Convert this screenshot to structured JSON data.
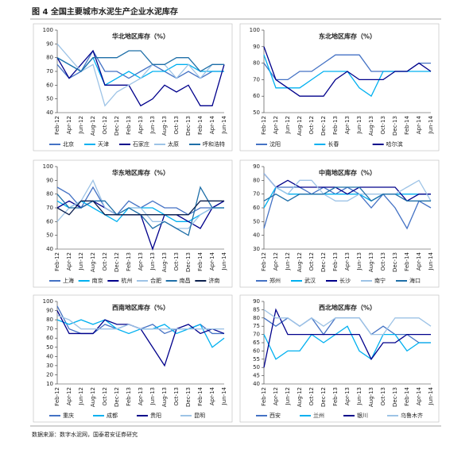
{
  "page_title": "图 4 全国主要城市水泥生产企业水泥库存",
  "source": "数据来源：数字水泥网，国泰君安证券研究",
  "chart_data": [
    {
      "type": "line",
      "title": "华北地区库存（%）",
      "categories": [
        "Feb-12",
        "Apr-12",
        "Jun-12",
        "Aug-12",
        "Oct-12",
        "Dec-12",
        "Feb-13",
        "Apr-13",
        "Jun-13",
        "Aug-13",
        "Oct-13",
        "Dec-13",
        "Feb-14",
        "Apr-14",
        "Jun-14"
      ],
      "ylim": [
        40,
        100
      ],
      "yticks": [
        40,
        50,
        60,
        70,
        80,
        90,
        100
      ],
      "series": [
        {
          "name": "北京",
          "color": "#4472c4",
          "values": [
            75,
            65,
            70,
            85,
            70,
            70,
            65,
            70,
            75,
            70,
            65,
            70,
            65,
            70,
            70
          ]
        },
        {
          "name": "天津",
          "color": "#00b0f0",
          "values": [
            80,
            75,
            70,
            80,
            60,
            65,
            70,
            65,
            70,
            70,
            75,
            75,
            70,
            70,
            70
          ]
        },
        {
          "name": "石家庄",
          "color": "#00008b",
          "values": [
            80,
            65,
            75,
            85,
            60,
            60,
            60,
            45,
            50,
            60,
            55,
            60,
            45,
            45,
            75
          ]
        },
        {
          "name": "太原",
          "color": "#9dc3e6",
          "values": [
            90,
            80,
            70,
            75,
            45,
            55,
            60,
            65,
            75,
            75,
            65,
            75,
            65,
            75,
            75
          ]
        },
        {
          "name": "呼和浩特",
          "color": "#1f6fa8",
          "values": [
            80,
            75,
            70,
            80,
            80,
            80,
            85,
            85,
            75,
            75,
            80,
            80,
            70,
            75,
            75
          ]
        }
      ]
    },
    {
      "type": "line",
      "title": "东北地区库存（%）",
      "categories": [
        "Feb-12",
        "Apr-12",
        "Jun-12",
        "Aug-12",
        "Oct-12",
        "Dec-12",
        "Feb-13",
        "Apr-13",
        "Jun-13",
        "Aug-13",
        "Oct-13",
        "Dec-13",
        "Feb-14",
        "Apr-14",
        "Jun-14"
      ],
      "ylim": [
        50,
        100
      ],
      "yticks": [
        50,
        60,
        70,
        80,
        90,
        100
      ],
      "series": [
        {
          "name": "沈阳",
          "color": "#4472c4",
          "values": [
            80,
            70,
            70,
            75,
            75,
            80,
            85,
            85,
            85,
            75,
            75,
            75,
            75,
            80,
            80
          ]
        },
        {
          "name": "长春",
          "color": "#00b0f0",
          "values": [
            85,
            65,
            65,
            65,
            70,
            75,
            75,
            75,
            65,
            60,
            75,
            75,
            75,
            75,
            75
          ]
        },
        {
          "name": "哈尔滨",
          "color": "#00008b",
          "values": [
            90,
            70,
            65,
            60,
            60,
            60,
            70,
            75,
            70,
            70,
            70,
            75,
            75,
            80,
            75
          ]
        }
      ]
    },
    {
      "type": "line",
      "title": "华东地区库存（%）",
      "categories": [
        "Feb-12",
        "Apr-12",
        "Jun-12",
        "Aug-12",
        "Oct-12",
        "Dec-12",
        "Feb-13",
        "Apr-13",
        "Jun-13",
        "Aug-13",
        "Oct-13",
        "Dec-13",
        "Feb-14",
        "Apr-14",
        "Jun-14"
      ],
      "ylim": [
        40,
        100
      ],
      "yticks": [
        40,
        50,
        60,
        70,
        80,
        90,
        100
      ],
      "series": [
        {
          "name": "上海",
          "color": "#4472c4",
          "values": [
            85,
            80,
            70,
            85,
            70,
            65,
            75,
            70,
            75,
            70,
            70,
            65,
            70,
            70,
            75
          ]
        },
        {
          "name": "南京",
          "color": "#00b0f0",
          "values": [
            75,
            70,
            75,
            70,
            65,
            60,
            70,
            70,
            70,
            65,
            60,
            60,
            65,
            70,
            70
          ]
        },
        {
          "name": "杭州",
          "color": "#00008b",
          "values": [
            70,
            75,
            70,
            75,
            70,
            65,
            65,
            65,
            40,
            65,
            65,
            60,
            55,
            70,
            75
          ]
        },
        {
          "name": "合肥",
          "color": "#9dc3e6",
          "values": [
            60,
            70,
            75,
            90,
            70,
            65,
            70,
            70,
            60,
            60,
            55,
            55,
            65,
            70,
            70
          ]
        },
        {
          "name": "南昌",
          "color": "#1f6fa8",
          "values": [
            80,
            70,
            70,
            75,
            75,
            65,
            70,
            65,
            55,
            60,
            55,
            50,
            85,
            70,
            70
          ]
        },
        {
          "name": "济南",
          "color": "#0b1f4d",
          "values": [
            70,
            65,
            75,
            75,
            65,
            65,
            65,
            65,
            65,
            65,
            65,
            65,
            75,
            75,
            75
          ]
        }
      ]
    },
    {
      "type": "line",
      "title": "中南地区库存（%）",
      "categories": [
        "Feb-12",
        "Apr-12",
        "Jun-12",
        "Aug-12",
        "Oct-12",
        "Dec-12",
        "Feb-13",
        "Apr-13",
        "Jun-13",
        "Aug-13",
        "Oct-13",
        "Dec-13",
        "Feb-14",
        "Apr-14",
        "Jun-14"
      ],
      "ylim": [
        30,
        90
      ],
      "yticks": [
        30,
        40,
        50,
        60,
        70,
        80,
        90
      ],
      "series": [
        {
          "name": "郑州",
          "color": "#4472c4",
          "values": [
            45,
            75,
            75,
            75,
            70,
            75,
            70,
            75,
            70,
            60,
            70,
            60,
            45,
            65,
            60
          ]
        },
        {
          "name": "武汉",
          "color": "#00b0f0",
          "values": [
            60,
            75,
            70,
            70,
            70,
            70,
            70,
            70,
            70,
            65,
            70,
            70,
            70,
            70,
            70
          ]
        },
        {
          "name": "长沙",
          "color": "#00008b",
          "values": [
            85,
            75,
            80,
            75,
            75,
            75,
            75,
            70,
            75,
            75,
            75,
            75,
            65,
            70,
            70
          ]
        },
        {
          "name": "南宁",
          "color": "#9dc3e6",
          "values": [
            85,
            75,
            70,
            80,
            80,
            70,
            65,
            65,
            70,
            70,
            70,
            70,
            75,
            80,
            65
          ]
        },
        {
          "name": "海口",
          "color": "#1f6fa8",
          "values": [
            65,
            70,
            65,
            70,
            70,
            70,
            75,
            75,
            75,
            65,
            70,
            70,
            65,
            65,
            65
          ]
        }
      ]
    },
    {
      "type": "line",
      "title": "西南地区库存（%）",
      "categories": [
        "Feb-12",
        "Apr-12",
        "Jun-12",
        "Aug-12",
        "Oct-12",
        "Dec-12",
        "Feb-13",
        "Apr-13",
        "Jun-13",
        "Aug-13",
        "Oct-13",
        "Dec-13",
        "Feb-14",
        "Apr-14",
        "Jun-14"
      ],
      "ylim": [
        10,
        100
      ],
      "yticks": [
        10,
        20,
        30,
        40,
        50,
        60,
        70,
        80,
        90,
        100
      ],
      "series": [
        {
          "name": "重庆",
          "color": "#4472c4",
          "values": [
            95,
            70,
            65,
            65,
            75,
            70,
            75,
            70,
            75,
            65,
            70,
            70,
            75,
            65,
            65
          ]
        },
        {
          "name": "成都",
          "color": "#00b0f0",
          "values": [
            80,
            75,
            80,
            75,
            80,
            70,
            65,
            70,
            70,
            75,
            65,
            70,
            75,
            50,
            60
          ]
        },
        {
          "name": "贵阳",
          "color": "#00008b",
          "values": [
            90,
            65,
            65,
            65,
            80,
            75,
            75,
            70,
            50,
            30,
            70,
            75,
            65,
            70,
            65
          ]
        },
        {
          "name": "昆明",
          "color": "#9dc3e6",
          "values": [
            85,
            80,
            70,
            70,
            70,
            70,
            75,
            70,
            70,
            70,
            70,
            70,
            70,
            70,
            70
          ]
        }
      ]
    },
    {
      "type": "line",
      "title": "西北地区库存（%）",
      "categories": [
        "Feb-12",
        "Apr-12",
        "Jun-12",
        "Aug-12",
        "Oct-12",
        "Dec-12",
        "Feb-13",
        "Apr-13",
        "Jun-13",
        "Aug-13",
        "Oct-13",
        "Dec-13",
        "Feb-14",
        "Apr-14",
        "Jun-14"
      ],
      "ylim": [
        40,
        90
      ],
      "yticks": [
        40,
        45,
        50,
        55,
        60,
        65,
        70,
        75,
        80,
        85,
        90
      ],
      "series": [
        {
          "name": "西安",
          "color": "#4472c4",
          "values": [
            80,
            75,
            80,
            75,
            80,
            70,
            80,
            80,
            80,
            70,
            75,
            70,
            70,
            65,
            65
          ]
        },
        {
          "name": "兰州",
          "color": "#00b0f0",
          "values": [
            70,
            55,
            60,
            60,
            70,
            65,
            70,
            75,
            60,
            55,
            70,
            70,
            60,
            65,
            65
          ]
        },
        {
          "name": "银川",
          "color": "#00008b",
          "values": [
            50,
            85,
            70,
            70,
            70,
            70,
            70,
            70,
            70,
            55,
            65,
            65,
            70,
            70,
            70
          ]
        },
        {
          "name": "乌鲁木齐",
          "color": "#9dc3e6",
          "values": [
            85,
            80,
            80,
            75,
            80,
            75,
            80,
            80,
            80,
            70,
            70,
            80,
            80,
            80,
            75
          ]
        }
      ]
    }
  ]
}
